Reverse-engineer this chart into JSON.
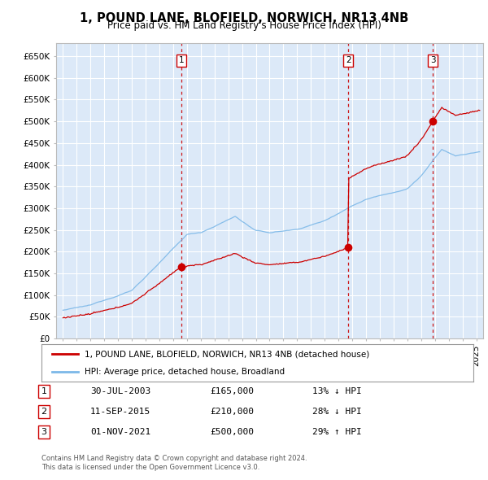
{
  "title": "1, POUND LANE, BLOFIELD, NORWICH, NR13 4NB",
  "subtitle": "Price paid vs. HM Land Registry's House Price Index (HPI)",
  "ylabel_ticks": [
    "£0",
    "£50K",
    "£100K",
    "£150K",
    "£200K",
    "£250K",
    "£300K",
    "£350K",
    "£400K",
    "£450K",
    "£500K",
    "£550K",
    "£600K",
    "£650K"
  ],
  "ytick_values": [
    0,
    50000,
    100000,
    150000,
    200000,
    250000,
    300000,
    350000,
    400000,
    450000,
    500000,
    550000,
    600000,
    650000
  ],
  "xlim_start": 1994.5,
  "xlim_end": 2025.5,
  "ylim_min": 0,
  "ylim_max": 680000,
  "plot_bg_color": "#dce9f8",
  "grid_color": "#ffffff",
  "hpi_line_color": "#7cb8e8",
  "price_line_color": "#cc0000",
  "sale_dot_color": "#cc0000",
  "vline_color": "#cc0000",
  "transactions": [
    {
      "date_year": 2003.58,
      "price": 165000,
      "label": "1"
    },
    {
      "date_year": 2015.71,
      "price": 210000,
      "label": "2"
    },
    {
      "date_year": 2021.84,
      "price": 500000,
      "label": "3"
    }
  ],
  "transaction_table": [
    {
      "num": "1",
      "date": "30-JUL-2003",
      "price": "£165,000",
      "hpi": "13% ↓ HPI"
    },
    {
      "num": "2",
      "date": "11-SEP-2015",
      "price": "£210,000",
      "hpi": "28% ↓ HPI"
    },
    {
      "num": "3",
      "date": "01-NOV-2021",
      "price": "£500,000",
      "hpi": "29% ↑ HPI"
    }
  ],
  "legend_line1": "1, POUND LANE, BLOFIELD, NORWICH, NR13 4NB (detached house)",
  "legend_line2": "HPI: Average price, detached house, Broadland",
  "footer1": "Contains HM Land Registry data © Crown copyright and database right 2024.",
  "footer2": "This data is licensed under the Open Government Licence v3.0."
}
